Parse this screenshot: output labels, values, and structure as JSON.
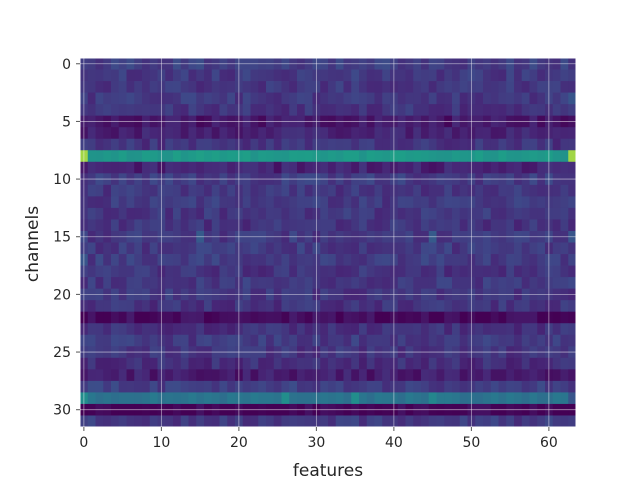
{
  "chart_data": {
    "type": "heatmap",
    "xlabel": "features",
    "ylabel": "channels",
    "n_cols": 64,
    "n_rows": 32,
    "x_ticks": [
      0,
      10,
      20,
      30,
      40,
      50,
      60
    ],
    "y_ticks": [
      0,
      5,
      10,
      15,
      20,
      25,
      30
    ],
    "x_range": [
      -0.5,
      63.5
    ],
    "y_range": [
      31.5,
      -0.5
    ],
    "grid": true,
    "colormap": "viridis",
    "row_levels": [
      0.24,
      0.22,
      0.21,
      0.22,
      0.2,
      0.1,
      0.14,
      0.2,
      0.62,
      0.14,
      0.23,
      0.21,
      0.22,
      0.21,
      0.2,
      0.22,
      0.22,
      0.23,
      0.2,
      0.22,
      0.21,
      0.2,
      0.06,
      0.19,
      0.22,
      0.2,
      0.18,
      0.12,
      0.24,
      0.45,
      0.04,
      0.22
    ],
    "notable_cells": [
      {
        "row": 8,
        "col": 0,
        "value": 0.92
      },
      {
        "row": 8,
        "col": 63,
        "value": 0.92
      },
      {
        "row": 8,
        "col": 46,
        "value": 0.58
      },
      {
        "row": 8,
        "col": 53,
        "value": 0.58
      },
      {
        "row": 29,
        "col": 0,
        "value": 0.55
      },
      {
        "row": 29,
        "col": 26,
        "value": 0.55
      },
      {
        "row": 29,
        "col": 35,
        "value": 0.55
      },
      {
        "row": 29,
        "col": 45,
        "value": 0.52
      },
      {
        "row": 29,
        "col": 63,
        "value": 0.3
      },
      {
        "row": 15,
        "col": 15,
        "value": 0.32
      },
      {
        "row": 15,
        "col": 45,
        "value": 0.32
      },
      {
        "row": 15,
        "col": 63,
        "value": 0.3
      },
      {
        "row": 17,
        "col": 0,
        "value": 0.3
      },
      {
        "row": 3,
        "col": 63,
        "value": 0.3
      }
    ]
  }
}
